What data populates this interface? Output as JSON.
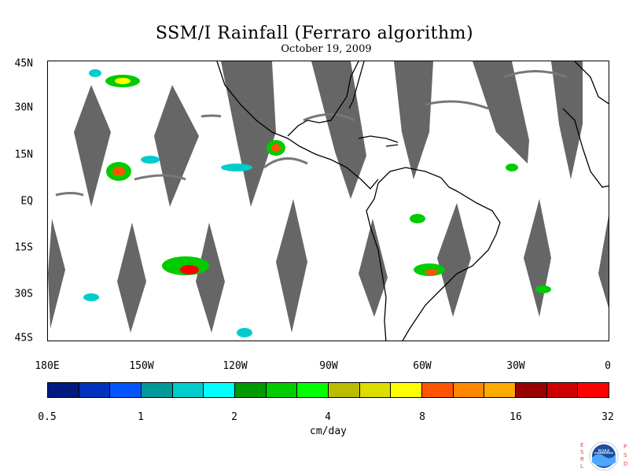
{
  "title": "SSM/I Rainfall (Ferraro algorithm)",
  "subtitle": "October 19, 2009",
  "y_axis_labels": [
    "45N",
    "30N",
    "15N",
    "EQ",
    "15S",
    "30S",
    "45S"
  ],
  "x_axis_labels": [
    "180E",
    "150W",
    "120W",
    "90W",
    "60W",
    "30W",
    "0"
  ],
  "colorbar": {
    "colors": [
      "#001a80",
      "#0033bb",
      "#0055ff",
      "#009999",
      "#00cccc",
      "#00ffff",
      "#009900",
      "#00cc00",
      "#00ff00",
      "#bbbb00",
      "#dddd00",
      "#ffff00",
      "#ff5500",
      "#ff8800",
      "#ffaa00",
      "#990000",
      "#cc0000",
      "#ff0000"
    ],
    "tick_labels": [
      "0.5",
      "1",
      "2",
      "4",
      "8",
      "16",
      "32"
    ],
    "units": "cm/day"
  },
  "logo": {
    "name": "NOAA",
    "left_letters": [
      "E",
      "S",
      "R",
      "L"
    ],
    "right_letters": [
      "P",
      "S",
      "D"
    ]
  }
}
